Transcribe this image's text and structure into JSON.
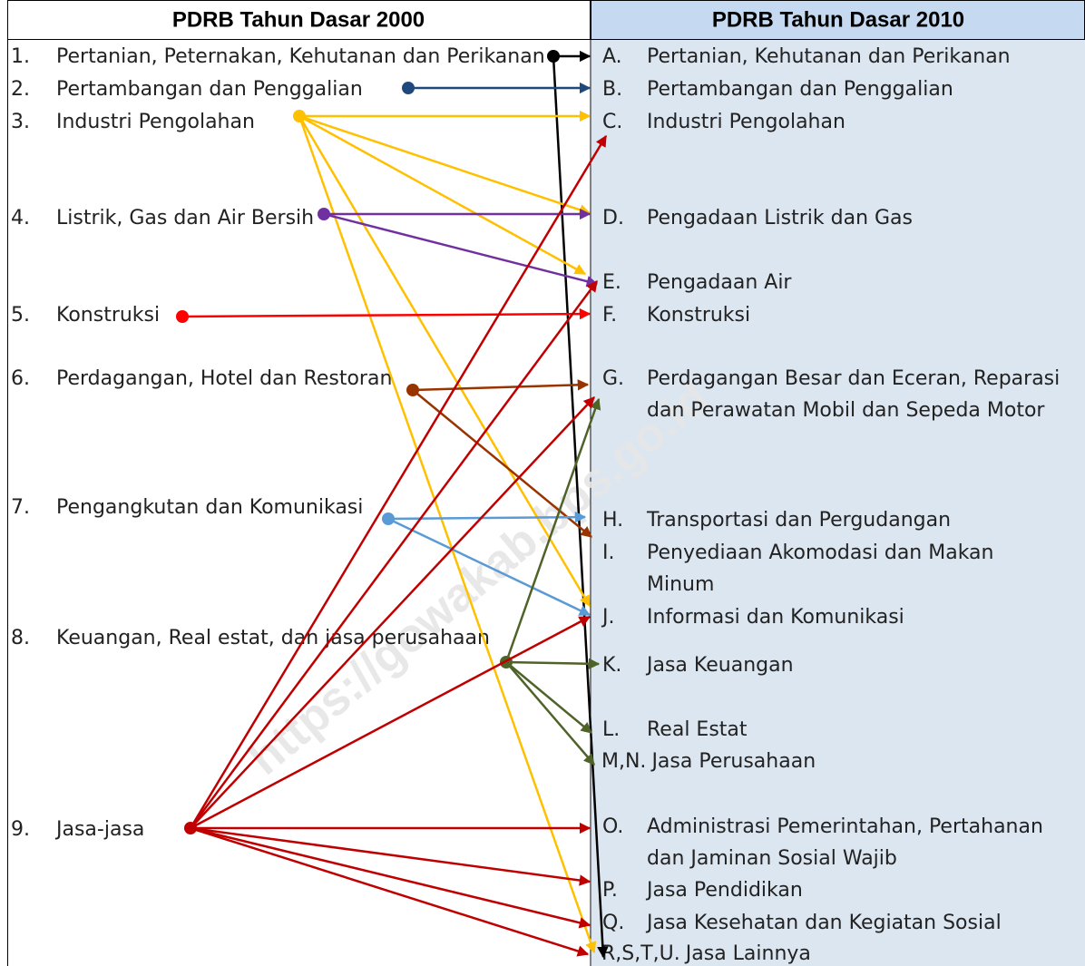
{
  "header": {
    "left": "PDRB Tahun Dasar 2000",
    "right": "PDRB Tahun Dasar 2010"
  },
  "left_items": [
    {
      "number": "1.",
      "label": "Pertanian, Peternakan, Kehutanan dan Perikanan"
    },
    {
      "number": "2.",
      "label": "Pertambangan dan Penggalian"
    },
    {
      "number": "3.",
      "label": "Industri Pengolahan"
    },
    {
      "number": "4.",
      "label": "Listrik, Gas dan Air Bersih"
    },
    {
      "number": "5.",
      "label": "Konstruksi"
    },
    {
      "number": "6.",
      "label": "Perdagangan, Hotel dan Restoran"
    },
    {
      "number": "7.",
      "label": "Pengangkutan dan Komunikasi"
    },
    {
      "number": "8.",
      "label": "Keuangan, Real estat, dan jasa perusahaan"
    },
    {
      "number": "9.",
      "label": "Jasa-jasa"
    }
  ],
  "right_items": [
    {
      "letter": "A.",
      "lines": [
        "Pertanian, Kehutanan dan Perikanan"
      ]
    },
    {
      "letter": "B.",
      "lines": [
        "Pertambangan dan Penggalian"
      ]
    },
    {
      "letter": "C.",
      "lines": [
        "Industri Pengolahan"
      ]
    },
    {
      "letter": "D.",
      "lines": [
        "Pengadaan Listrik dan Gas"
      ]
    },
    {
      "letter": "E.",
      "lines": [
        "Pengadaan Air"
      ]
    },
    {
      "letter": "F.",
      "lines": [
        "Konstruksi"
      ]
    },
    {
      "letter": "G.",
      "lines": [
        "Perdagangan Besar dan Eceran, Reparasi",
        "dan Perawatan Mobil dan Sepeda Motor"
      ]
    },
    {
      "letter": "H.",
      "lines": [
        "Transportasi dan Pergudangan"
      ]
    },
    {
      "letter": "I.",
      "lines": [
        "Penyediaan Akomodasi dan Makan",
        "Minum"
      ]
    },
    {
      "letter": "J.",
      "lines": [
        "Informasi dan Komunikasi"
      ]
    },
    {
      "letter": "K.",
      "lines": [
        "Jasa Keuangan"
      ]
    },
    {
      "letter": "L.",
      "lines": [
        "Real Estat"
      ]
    },
    {
      "letter": "M,N.",
      "lines": [
        "Jasa Perusahaan"
      ]
    },
    {
      "letter": "O.",
      "lines": [
        "Administrasi Pemerintahan, Pertahanan",
        "dan Jaminan Sosial Wajib"
      ]
    },
    {
      "letter": "P.",
      "lines": [
        "Jasa Pendidikan"
      ]
    },
    {
      "letter": "Q.",
      "lines": [
        "Jasa Kesehatan dan Kegiatan Sosial"
      ]
    },
    {
      "letter": "R,S,T,U.",
      "lines": [
        "Jasa Lainnya"
      ]
    }
  ],
  "watermark": "https://gowakab.bps.go.id"
}
